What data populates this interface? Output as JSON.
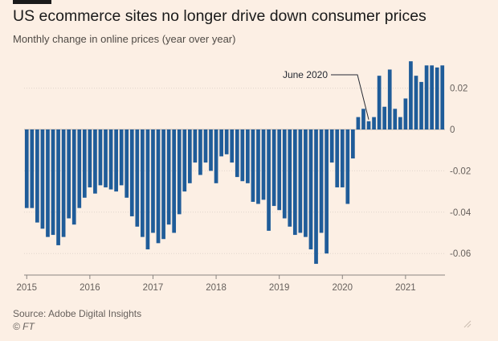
{
  "header": {
    "title": "US ecommerce sites no longer drive down consumer prices",
    "subtitle": "Monthly change in online prices (year over year)"
  },
  "footer": {
    "source": "Source: Adobe Digital Insights",
    "copyright": "© FT"
  },
  "colors": {
    "background": "#fcefe4",
    "bar": "#1f5c99",
    "gridline": "#e0d5cc",
    "text": "#262a33"
  },
  "chart_data": {
    "type": "bar",
    "title": "US ecommerce sites no longer drive down consumer prices",
    "subtitle": "Monthly change in online prices (year over year)",
    "xlabel": "",
    "ylabel": "",
    "ylim": [
      -0.066,
      0.034
    ],
    "y_ticks": [
      0.02,
      0,
      -0.02,
      -0.04,
      -0.06
    ],
    "y_tick_labels": [
      "0.02",
      "0",
      "-0.02",
      "-0.04",
      "-0.06"
    ],
    "x_ticks": [
      2015,
      2016,
      2017,
      2018,
      2019,
      2020,
      2021
    ],
    "x_tick_labels": [
      "2015",
      "2016",
      "2017",
      "2018",
      "2019",
      "2020",
      "2021"
    ],
    "y_axis_position": "right",
    "grid": "horizontal",
    "start": "2015-01",
    "months": [
      "2015-01",
      "2015-02",
      "2015-03",
      "2015-04",
      "2015-05",
      "2015-06",
      "2015-07",
      "2015-08",
      "2015-09",
      "2015-10",
      "2015-11",
      "2015-12",
      "2016-01",
      "2016-02",
      "2016-03",
      "2016-04",
      "2016-05",
      "2016-06",
      "2016-07",
      "2016-08",
      "2016-09",
      "2016-10",
      "2016-11",
      "2016-12",
      "2017-01",
      "2017-02",
      "2017-03",
      "2017-04",
      "2017-05",
      "2017-06",
      "2017-07",
      "2017-08",
      "2017-09",
      "2017-10",
      "2017-11",
      "2017-12",
      "2018-01",
      "2018-02",
      "2018-03",
      "2018-04",
      "2018-05",
      "2018-06",
      "2018-07",
      "2018-08",
      "2018-09",
      "2018-10",
      "2018-11",
      "2018-12",
      "2019-01",
      "2019-02",
      "2019-03",
      "2019-04",
      "2019-05",
      "2019-06",
      "2019-07",
      "2019-08",
      "2019-09",
      "2019-10",
      "2019-11",
      "2019-12",
      "2020-01",
      "2020-02",
      "2020-03",
      "2020-04",
      "2020-05",
      "2020-06",
      "2020-07",
      "2020-08",
      "2020-09",
      "2020-10",
      "2020-11",
      "2020-12",
      "2021-01",
      "2021-02",
      "2021-03",
      "2021-04",
      "2021-05",
      "2021-06",
      "2021-07",
      "2021-08"
    ],
    "values": [
      -0.038,
      -0.038,
      -0.045,
      -0.048,
      -0.052,
      -0.051,
      -0.056,
      -0.052,
      -0.043,
      -0.046,
      -0.038,
      -0.033,
      -0.028,
      -0.031,
      -0.027,
      -0.028,
      -0.029,
      -0.03,
      -0.027,
      -0.033,
      -0.042,
      -0.047,
      -0.052,
      -0.058,
      -0.05,
      -0.055,
      -0.053,
      -0.046,
      -0.05,
      -0.041,
      -0.03,
      -0.026,
      -0.016,
      -0.022,
      -0.016,
      -0.02,
      -0.026,
      -0.013,
      -0.012,
      -0.016,
      -0.023,
      -0.025,
      -0.026,
      -0.035,
      -0.036,
      -0.034,
      -0.049,
      -0.037,
      -0.039,
      -0.043,
      -0.047,
      -0.051,
      -0.05,
      -0.052,
      -0.058,
      -0.065,
      -0.05,
      -0.06,
      -0.016,
      -0.028,
      -0.028,
      -0.036,
      -0.014,
      0.006,
      0.01,
      0.004,
      0.006,
      0.026,
      0.011,
      0.029,
      0.01,
      0.006,
      0.015,
      0.033,
      0.026,
      0.023,
      0.031,
      0.031,
      0.03,
      0.031
    ],
    "annotations": [
      {
        "label": "June 2020",
        "month": "2020-06"
      }
    ]
  }
}
